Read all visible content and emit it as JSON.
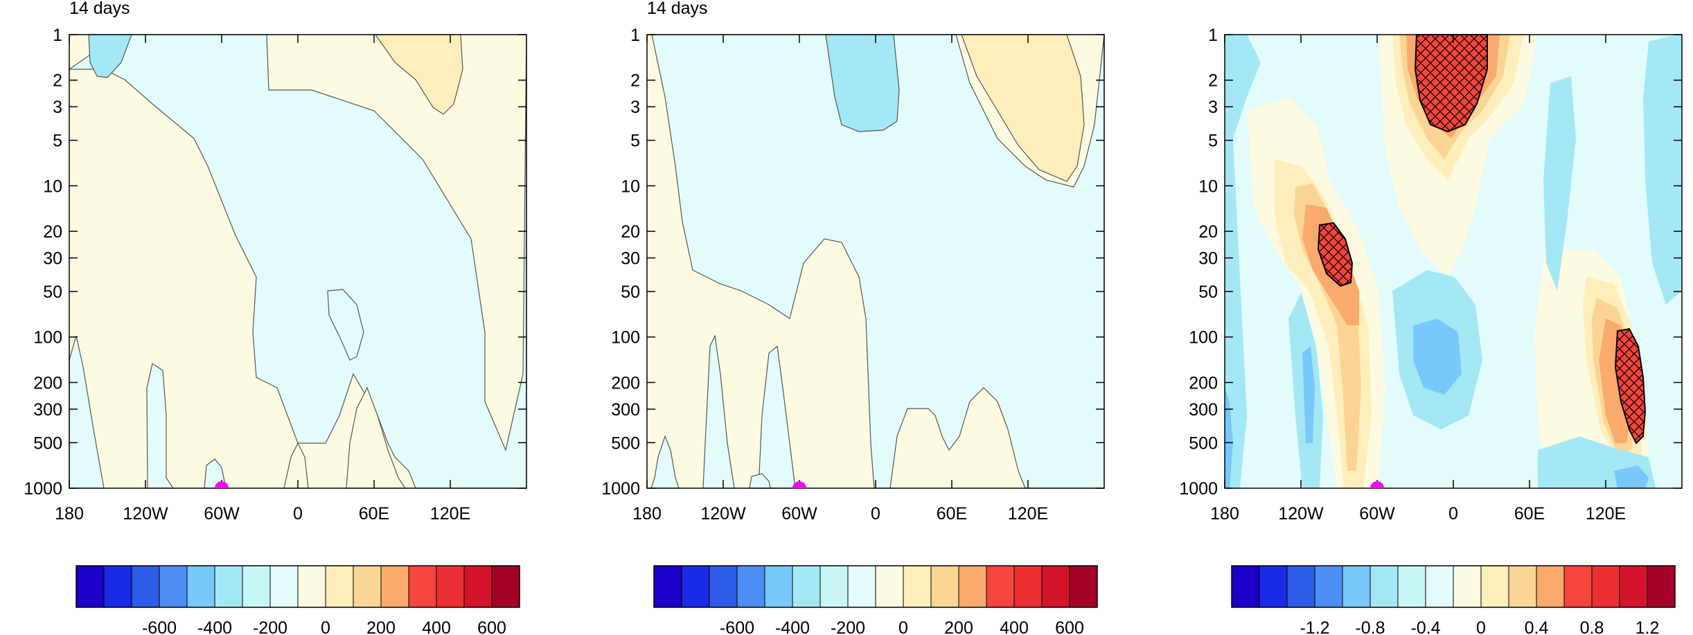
{
  "colors": {
    "palette": [
      "#1a00c8",
      "#1b2ae6",
      "#2d5de8",
      "#4c8ef3",
      "#78c8fb",
      "#a4e8f6",
      "#c8f6f6",
      "#e4fbfb",
      "#fdfae2",
      "#fdeebb",
      "#fbd594",
      "#f9aa6c",
      "#f5453d",
      "#ec2f33",
      "#d4132b",
      "#a40026"
    ],
    "contour_line": "#555555",
    "marker": "#ff00ff",
    "hatch": "#000000"
  },
  "chart_data": [
    {
      "type": "heatmap",
      "title": "14 days",
      "x_tick_labels": [
        "180",
        "120W",
        "60W",
        "0",
        "60E",
        "120E"
      ],
      "x_tick_values": [
        -180,
        -120,
        -60,
        0,
        60,
        120
      ],
      "xlim": [
        -180,
        180
      ],
      "y_tick_labels": [
        "1",
        "2",
        "3",
        "5",
        "10",
        "20",
        "30",
        "50",
        "100",
        "200",
        "300",
        "500",
        "1000"
      ],
      "y_tick_values": [
        1,
        2,
        3,
        5,
        10,
        20,
        30,
        50,
        100,
        200,
        300,
        500,
        1000
      ],
      "ylim": [
        1,
        1000
      ],
      "y_scale": "log",
      "y_reversed": true,
      "marker": {
        "lon": -60,
        "level": 1000
      },
      "colorbar": {
        "tick_labels": [
          "-600",
          "-400",
          "-200",
          "0",
          "200",
          "400",
          "600"
        ]
      }
    },
    {
      "type": "heatmap",
      "title": "14 days",
      "x_tick_labels": [
        "180",
        "120W",
        "60W",
        "0",
        "60E",
        "120E"
      ],
      "x_tick_values": [
        -180,
        -120,
        -60,
        0,
        60,
        120
      ],
      "xlim": [
        -180,
        180
      ],
      "y_tick_labels": [
        "1",
        "2",
        "3",
        "5",
        "10",
        "20",
        "30",
        "50",
        "100",
        "200",
        "300",
        "500",
        "1000"
      ],
      "y_tick_values": [
        1,
        2,
        3,
        5,
        10,
        20,
        30,
        50,
        100,
        200,
        300,
        500,
        1000
      ],
      "ylim": [
        1,
        1000
      ],
      "y_scale": "log",
      "y_reversed": true,
      "marker": {
        "lon": -60,
        "level": 1000
      },
      "colorbar": {
        "tick_labels": [
          "-600",
          "-400",
          "-200",
          "0",
          "200",
          "400",
          "600"
        ]
      }
    },
    {
      "type": "heatmap",
      "title": "",
      "x_tick_labels": [
        "180",
        "120W",
        "60W",
        "0",
        "60E",
        "120E"
      ],
      "x_tick_values": [
        -180,
        -120,
        -60,
        0,
        60,
        120
      ],
      "xlim": [
        -180,
        180
      ],
      "y_tick_labels": [
        "1",
        "2",
        "3",
        "5",
        "10",
        "20",
        "30",
        "50",
        "100",
        "200",
        "300",
        "500",
        "1000"
      ],
      "y_tick_values": [
        1,
        2,
        3,
        5,
        10,
        20,
        30,
        50,
        100,
        200,
        300,
        500,
        1000
      ],
      "ylim": [
        1,
        1000
      ],
      "y_scale": "log",
      "y_reversed": true,
      "marker": {
        "lon": -60,
        "level": 1000
      },
      "colorbar": {
        "tick_labels": [
          "-1.2",
          "-0.8",
          "-0.4",
          "0",
          "0.4",
          "0.8",
          "1.2"
        ]
      }
    }
  ]
}
